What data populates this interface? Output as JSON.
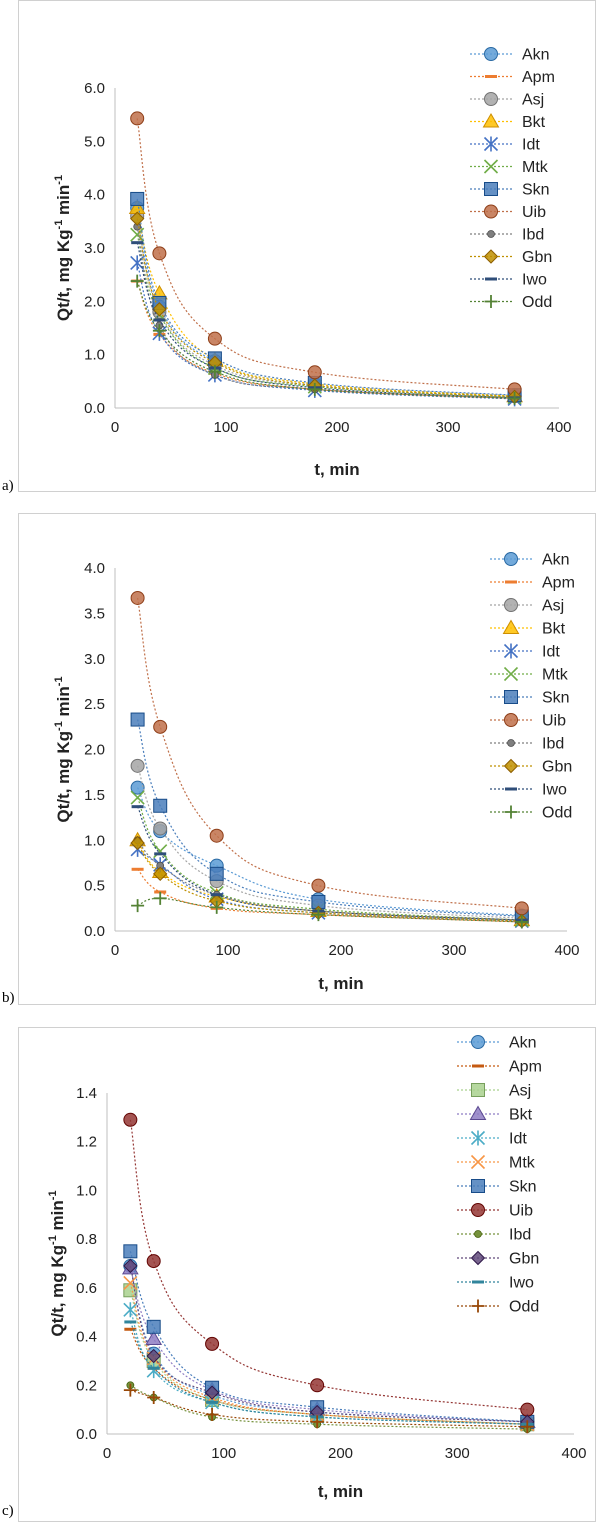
{
  "chart_data": [
    {
      "panel": "a)",
      "type": "scatter",
      "xlabel": "t, min",
      "ylabel_main": "Qt/t, mg Kg",
      "ylabel_sup1": "-1",
      "ylabel_mid": " min",
      "ylabel_sup2": "-1",
      "xlim": [
        0,
        400
      ],
      "ylim": [
        0,
        6
      ],
      "xticks": [
        "0",
        "100",
        "200",
        "300",
        "400"
      ],
      "yticks": [
        "0.0",
        "1.0",
        "2.0",
        "3.0",
        "4.0",
        "5.0",
        "6.0"
      ],
      "grid": false,
      "legend_position": "right",
      "x": [
        20,
        40,
        90,
        180,
        360
      ],
      "series": [
        {
          "name": "Akn",
          "marker": "circle",
          "color": "#5B9BD5",
          "values": [
            3.75,
            1.9,
            0.88,
            0.45,
            0.23
          ]
        },
        {
          "name": "Apm",
          "marker": "dash",
          "color": "#ED7D31",
          "values": [
            2.38,
            1.38,
            0.65,
            0.35,
            0.18
          ]
        },
        {
          "name": "Asj",
          "marker": "circle",
          "color": "#A5A5A5",
          "values": [
            3.6,
            1.8,
            0.8,
            0.42,
            0.22
          ]
        },
        {
          "name": "Bkt",
          "marker": "triangle",
          "color": "#FFC000",
          "values": [
            3.75,
            2.15,
            0.9,
            0.45,
            0.22
          ]
        },
        {
          "name": "Idt",
          "marker": "star",
          "color": "#4472C4",
          "values": [
            2.72,
            1.4,
            0.62,
            0.33,
            0.17
          ]
        },
        {
          "name": "Mtk",
          "marker": "x",
          "color": "#70AD47",
          "values": [
            3.25,
            1.75,
            0.75,
            0.4,
            0.2
          ]
        },
        {
          "name": "Skn",
          "marker": "square",
          "color": "#4A7EBB",
          "values": [
            3.92,
            1.97,
            0.93,
            0.47,
            0.24
          ]
        },
        {
          "name": "Uib",
          "marker": "circle",
          "color": "#C0704A",
          "values": [
            5.43,
            2.9,
            1.3,
            0.67,
            0.35
          ]
        },
        {
          "name": "Ibd",
          "marker": "dot",
          "color": "#7F7F7F",
          "values": [
            3.4,
            1.55,
            0.62,
            0.35,
            0.18
          ]
        },
        {
          "name": "Gbn",
          "marker": "diamond",
          "color": "#BF9000",
          "values": [
            3.55,
            1.85,
            0.85,
            0.42,
            0.21
          ]
        },
        {
          "name": "Iwo",
          "marker": "dash",
          "color": "#2F4E79",
          "values": [
            3.1,
            1.65,
            0.75,
            0.38,
            0.19
          ]
        },
        {
          "name": "Odd",
          "marker": "plus",
          "color": "#548235",
          "values": [
            2.38,
            1.45,
            0.68,
            0.35,
            0.18
          ]
        }
      ]
    },
    {
      "panel": "b)",
      "type": "scatter",
      "xlabel": "t, min",
      "ylabel_main": "Qt/t, mg Kg",
      "ylabel_sup1": "-1",
      "ylabel_mid": " min",
      "ylabel_sup2": "-1",
      "xlim": [
        0,
        400
      ],
      "ylim": [
        0,
        4
      ],
      "xticks": [
        "0",
        "100",
        "200",
        "300",
        "400"
      ],
      "yticks": [
        "0.0",
        "0.5",
        "1.0",
        "1.5",
        "2.0",
        "2.5",
        "3.0",
        "3.5",
        "4.0"
      ],
      "grid": false,
      "legend_position": "right",
      "x": [
        20,
        40,
        90,
        180,
        360
      ],
      "series": [
        {
          "name": "Akn",
          "marker": "circle",
          "color": "#5B9BD5",
          "values": [
            1.58,
            1.1,
            0.72,
            0.35,
            0.17
          ]
        },
        {
          "name": "Apm",
          "marker": "dash",
          "color": "#ED7D31",
          "values": [
            0.68,
            0.43,
            0.25,
            0.18,
            0.1
          ]
        },
        {
          "name": "Asj",
          "marker": "circle",
          "color": "#A5A5A5",
          "values": [
            1.82,
            1.13,
            0.55,
            0.28,
            0.14
          ]
        },
        {
          "name": "Bkt",
          "marker": "triangle",
          "color": "#FFC000",
          "values": [
            1.0,
            0.65,
            0.38,
            0.22,
            0.12
          ]
        },
        {
          "name": "Idt",
          "marker": "star",
          "color": "#4472C4",
          "values": [
            0.9,
            0.73,
            0.35,
            0.2,
            0.11
          ]
        },
        {
          "name": "Mtk",
          "marker": "x",
          "color": "#70AD47",
          "values": [
            1.47,
            0.88,
            0.42,
            0.24,
            0.12
          ]
        },
        {
          "name": "Skn",
          "marker": "square",
          "color": "#4A7EBB",
          "values": [
            2.33,
            1.38,
            0.63,
            0.32,
            0.16
          ]
        },
        {
          "name": "Uib",
          "marker": "circle",
          "color": "#C0704A",
          "values": [
            3.67,
            2.25,
            1.05,
            0.5,
            0.25
          ]
        },
        {
          "name": "Ibd",
          "marker": "dot",
          "color": "#7F7F7F",
          "values": [
            1.0,
            0.72,
            0.4,
            0.22,
            0.12
          ]
        },
        {
          "name": "Gbn",
          "marker": "diamond",
          "color": "#BF9000",
          "values": [
            0.97,
            0.63,
            0.33,
            0.2,
            0.11
          ]
        },
        {
          "name": "Iwo",
          "marker": "dash",
          "color": "#2F4E79",
          "values": [
            1.37,
            0.85,
            0.4,
            0.22,
            0.12
          ]
        },
        {
          "name": "Odd",
          "marker": "plus",
          "color": "#548235",
          "values": [
            0.28,
            0.36,
            0.26,
            0.18,
            0.1
          ]
        }
      ]
    },
    {
      "panel": "c)",
      "type": "scatter",
      "xlabel": "t, min",
      "ylabel_main": "Qt/t, mg Kg",
      "ylabel_sup1": "-1",
      "ylabel_mid": " min",
      "ylabel_sup2": "-1",
      "xlim": [
        0,
        400
      ],
      "ylim": [
        0,
        1.4
      ],
      "xticks": [
        "0",
        "100",
        "200",
        "300",
        "400"
      ],
      "yticks": [
        "0.0",
        "0.2",
        "0.4",
        "0.6",
        "0.8",
        "1.0",
        "1.2",
        "1.4"
      ],
      "grid": false,
      "legend_position": "right",
      "x": [
        20,
        40,
        90,
        180,
        360
      ],
      "series": [
        {
          "name": "Akn",
          "marker": "circle",
          "color": "#5B9BD5",
          "values": [
            0.69,
            0.33,
            0.16,
            0.09,
            0.05
          ]
        },
        {
          "name": "Apm",
          "marker": "dash",
          "color": "#C55A11",
          "values": [
            0.43,
            0.27,
            0.14,
            0.08,
            0.04
          ]
        },
        {
          "name": "Asj",
          "marker": "square",
          "color": "#A9D18E",
          "values": [
            0.59,
            0.3,
            0.14,
            0.08,
            0.04
          ]
        },
        {
          "name": "Bkt",
          "marker": "triangle",
          "color": "#8E7CC3",
          "values": [
            0.68,
            0.39,
            0.18,
            0.1,
            0.05
          ]
        },
        {
          "name": "Idt",
          "marker": "star",
          "color": "#4BACC6",
          "values": [
            0.51,
            0.26,
            0.13,
            0.07,
            0.04
          ]
        },
        {
          "name": "Mtk",
          "marker": "x",
          "color": "#F79646",
          "values": [
            0.62,
            0.31,
            0.15,
            0.08,
            0.04
          ]
        },
        {
          "name": "Skn",
          "marker": "square",
          "color": "#4A7EBB",
          "values": [
            0.75,
            0.44,
            0.19,
            0.11,
            0.05
          ]
        },
        {
          "name": "Uib",
          "marker": "circle",
          "color": "#943634",
          "values": [
            1.29,
            0.71,
            0.37,
            0.2,
            0.1
          ]
        },
        {
          "name": "Ibd",
          "marker": "dot",
          "color": "#76923C",
          "values": [
            0.2,
            0.15,
            0.07,
            0.04,
            0.02
          ]
        },
        {
          "name": "Gbn",
          "marker": "diamond",
          "color": "#60497A",
          "values": [
            0.69,
            0.32,
            0.17,
            0.09,
            0.05
          ]
        },
        {
          "name": "Iwo",
          "marker": "dash",
          "color": "#31859C",
          "values": [
            0.46,
            0.27,
            0.13,
            0.07,
            0.04
          ]
        },
        {
          "name": "Odd",
          "marker": "plus",
          "color": "#984807",
          "values": [
            0.18,
            0.15,
            0.08,
            0.05,
            0.03
          ]
        }
      ]
    }
  ]
}
